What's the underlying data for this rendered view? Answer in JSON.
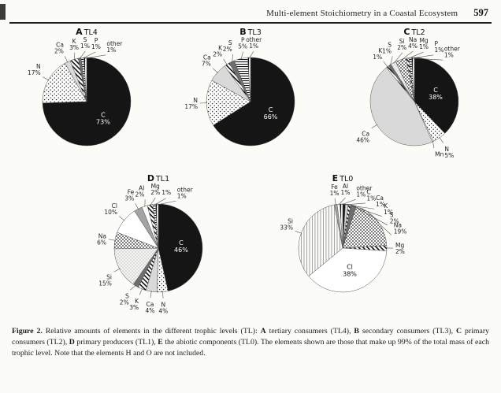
{
  "header": {
    "title": "Multi-element Stoichiometry in a Coastal Ecosystem",
    "page_number": "597"
  },
  "figure_caption": {
    "segments": [
      {
        "t": "Figure 2.",
        "b": true
      },
      {
        "t": " Relative amounts of elements in the different trophic levels (TL): ",
        "b": false
      },
      {
        "t": "A",
        "b": true
      },
      {
        "t": " tertiary consumers (TL4), ",
        "b": false
      },
      {
        "t": "B",
        "b": true
      },
      {
        "t": " secondary consumers (TL3), ",
        "b": false
      },
      {
        "t": "C",
        "b": true
      },
      {
        "t": " primary consumers (TL2), ",
        "b": false
      },
      {
        "t": "D",
        "b": true
      },
      {
        "t": " primary producers (TL1), ",
        "b": false
      },
      {
        "t": "E",
        "b": true
      },
      {
        "t": " the abiotic components (TL0). The elements shown are those that make up 99% of the total mass of each trophic level. Note that the elements H and O are not included.",
        "b": false
      }
    ]
  },
  "chart_data": [
    {
      "type": "pie",
      "panel": "A",
      "trophic_level": "TL4",
      "description": "tertiary consumers",
      "slices": [
        {
          "label": "C",
          "value": 73,
          "pct": "73%",
          "pattern": "black"
        },
        {
          "label": "N",
          "value": 17,
          "pct": "17%",
          "pattern": "dots"
        },
        {
          "label": "Ca",
          "value": 2,
          "pct": "2%",
          "pattern": "lightgray"
        },
        {
          "label": "K",
          "value": 3,
          "pct": "3%",
          "pattern": "diag"
        },
        {
          "label": "S",
          "value": 1,
          "pct": "1%",
          "pattern": "darkgray"
        },
        {
          "label": "P",
          "value": 1,
          "pct": "1%",
          "pattern": "hlines"
        },
        {
          "label": "other",
          "value": 1,
          "pct": "1%",
          "pattern": "vlines"
        }
      ]
    },
    {
      "type": "pie",
      "panel": "B",
      "trophic_level": "TL3",
      "description": "secondary consumers",
      "slices": [
        {
          "label": "C",
          "value": 66,
          "pct": "66%",
          "pattern": "black"
        },
        {
          "label": "N",
          "value": 17,
          "pct": "17%",
          "pattern": "dots"
        },
        {
          "label": "Ca",
          "value": 7,
          "pct": "7%",
          "pattern": "lightgray"
        },
        {
          "label": "K",
          "value": 2,
          "pct": "2%",
          "pattern": "diag"
        },
        {
          "label": "S",
          "value": 2,
          "pct": "2%",
          "pattern": "darkgray"
        },
        {
          "label": "P",
          "value": 5,
          "pct": "5%",
          "pattern": "hlines"
        },
        {
          "label": "other",
          "value": 1,
          "pct": "1%",
          "pattern": "vlines"
        }
      ]
    },
    {
      "type": "pie",
      "panel": "C",
      "trophic_level": "TL2",
      "description": "primary consumers",
      "slices": [
        {
          "label": "C",
          "value": 38,
          "pct": "38%",
          "pattern": "black"
        },
        {
          "label": "N",
          "value": 5,
          "pct": "5%",
          "pattern": "dots"
        },
        {
          "label": "Mn",
          "value": 0.5,
          "pct": "",
          "pattern": "white"
        },
        {
          "label": "Ca",
          "value": 46,
          "pct": "46%",
          "pattern": "lightgray"
        },
        {
          "label": "K",
          "value": 1,
          "pct": "1%",
          "pattern": "diag"
        },
        {
          "label": "S",
          "value": 1,
          "pct": "1%",
          "pattern": "darkgray"
        },
        {
          "label": "Si",
          "value": 2,
          "pct": "2%",
          "pattern": "finedots"
        },
        {
          "label": "Na",
          "value": 4,
          "pct": "4%",
          "pattern": "densedots"
        },
        {
          "label": "Mg",
          "value": 1,
          "pct": "1%",
          "pattern": "diag"
        },
        {
          "label": "P",
          "value": 1,
          "pct": "1%",
          "pattern": "hlines"
        },
        {
          "label": "other",
          "value": 1,
          "pct": "1%",
          "pattern": "vlines"
        }
      ]
    },
    {
      "type": "pie",
      "panel": "D",
      "trophic_level": "TL1",
      "description": "primary producers",
      "slices": [
        {
          "label": "C",
          "value": 46,
          "pct": "46%",
          "pattern": "black"
        },
        {
          "label": "N",
          "value": 4,
          "pct": "4%",
          "pattern": "dots"
        },
        {
          "label": "Ca",
          "value": 4,
          "pct": "4%",
          "pattern": "lightgray"
        },
        {
          "label": "K",
          "value": 3,
          "pct": "3%",
          "pattern": "diag"
        },
        {
          "label": "S",
          "value": 2,
          "pct": "2%",
          "pattern": "darkgray"
        },
        {
          "label": "Si",
          "value": 15,
          "pct": "15%",
          "pattern": "finedots"
        },
        {
          "label": "Na",
          "value": 6,
          "pct": "6%",
          "pattern": "densedots"
        },
        {
          "label": "Cl",
          "value": 10,
          "pct": "10%",
          "pattern": "white"
        },
        {
          "label": "Fe",
          "value": 3,
          "pct": "3%",
          "pattern": "gray"
        },
        {
          "label": "Al",
          "value": 2,
          "pct": "2%",
          "pattern": "white"
        },
        {
          "label": "Mg",
          "value": 2,
          "pct": "2%",
          "pattern": "diag"
        },
        {
          "label": "",
          "value": 1,
          "pct": "1%",
          "pattern": "hlines"
        },
        {
          "label": "other",
          "value": 1,
          "pct": "1%",
          "pattern": "vlines"
        }
      ]
    },
    {
      "type": "pie",
      "panel": "E",
      "trophic_level": "TL0",
      "description": "abiotic components",
      "slices": [
        {
          "label": "C",
          "value": 1,
          "pct": "1%",
          "pattern": "black"
        },
        {
          "label": "Ca",
          "value": 1,
          "pct": "1%",
          "pattern": "lightgray"
        },
        {
          "label": "K",
          "value": 1,
          "pct": "1%",
          "pattern": "diag"
        },
        {
          "label": "S",
          "value": 2,
          "pct": "2%",
          "pattern": "darkgray"
        },
        {
          "label": "Na",
          "value": 19,
          "pct": "19%",
          "pattern": "densedots"
        },
        {
          "label": "Mg",
          "value": 2,
          "pct": "2%",
          "pattern": "diag"
        },
        {
          "label": "Cl",
          "value": 38,
          "pct": "38%",
          "pattern": "white"
        },
        {
          "label": "Si",
          "value": 33,
          "pct": "33%",
          "pattern": "vlineslight"
        },
        {
          "label": "Fe",
          "value": 1,
          "pct": "1%",
          "pattern": "gray"
        },
        {
          "label": "Al",
          "value": 1,
          "pct": "1%",
          "pattern": "white"
        },
        {
          "label": "other",
          "value": 1,
          "pct": "1%",
          "pattern": "vlines"
        }
      ]
    }
  ]
}
